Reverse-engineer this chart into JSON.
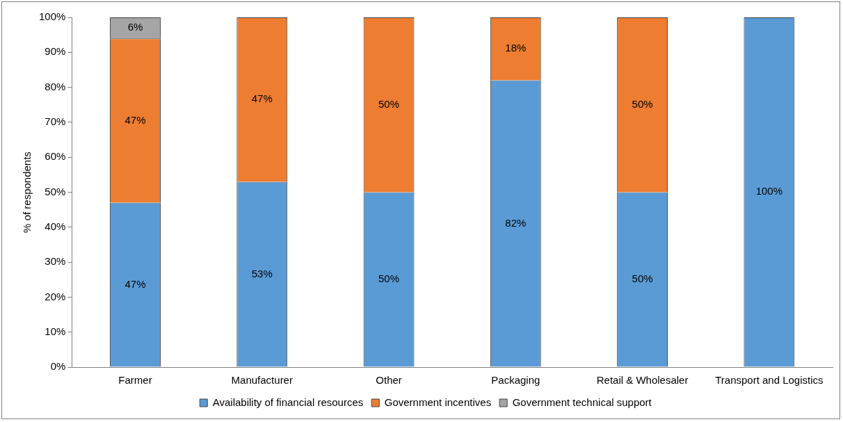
{
  "chart_data": {
    "type": "bar",
    "stacked": true,
    "ylabel": "% of respondents",
    "categories": [
      "Farmer",
      "Manufacturer",
      "Other",
      "Packaging",
      "Retail & Wholesaler",
      "Transport and Logistics"
    ],
    "series": [
      {
        "name": "Availability of financial resources",
        "color": "#5b9bd5",
        "values": [
          47,
          53,
          50,
          82,
          50,
          100
        ],
        "value_labels": [
          "47%",
          "53%",
          "50%",
          "82%",
          "50%",
          "100%"
        ]
      },
      {
        "name": "Government incentives",
        "color": "#ed7d31",
        "values": [
          47,
          47,
          50,
          18,
          50,
          null
        ],
        "value_labels": [
          "47%",
          "47%",
          "50%",
          "18%",
          "50%",
          null
        ]
      },
      {
        "name": "Government technical support",
        "color": "#a5a5a5",
        "values": [
          6,
          null,
          null,
          null,
          null,
          null
        ],
        "value_labels": [
          "6%",
          null,
          null,
          null,
          null,
          null
        ]
      }
    ],
    "ylim": [
      0,
      100
    ],
    "yticks": [
      {
        "value": 0,
        "label": "0%"
      },
      {
        "value": 10,
        "label": "10%"
      },
      {
        "value": 20,
        "label": "20%"
      },
      {
        "value": 30,
        "label": "30%"
      },
      {
        "value": 40,
        "label": "40%"
      },
      {
        "value": 50,
        "label": "50%"
      },
      {
        "value": 60,
        "label": "60%"
      },
      {
        "value": 70,
        "label": "70%"
      },
      {
        "value": 80,
        "label": "80%"
      },
      {
        "value": 90,
        "label": "90%"
      },
      {
        "value": 100,
        "label": "100%"
      }
    ],
    "grid": false,
    "legend": "bottom"
  }
}
